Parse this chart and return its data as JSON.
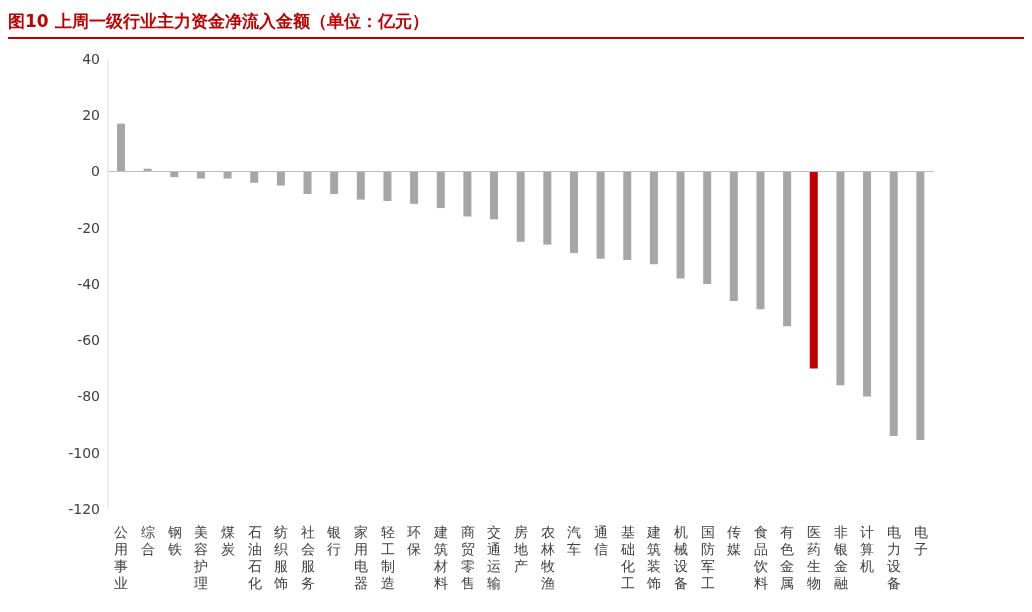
{
  "chart_data": {
    "type": "bar",
    "title": "图10  上周一级行业主力资金净流入金额（单位：亿元）",
    "categories": [
      "公用事业",
      "综合",
      "钢铁",
      "美容护理",
      "煤炭",
      "石油石化",
      "纺织服饰",
      "社会服务",
      "银行",
      "家用电器",
      "轻工制造",
      "环保",
      "建筑材料",
      "商贸零售",
      "交通运输",
      "房地产",
      "农林牧渔",
      "汽车",
      "通信",
      "基础化工",
      "建筑装饰",
      "机械设备",
      "国防军工",
      "传媒",
      "食品饮料",
      "有色金属",
      "医药生物",
      "非银金融",
      "计算机",
      "电力设备",
      "电子"
    ],
    "values": [
      17,
      1,
      -2,
      -2.5,
      -2.5,
      -4,
      -5,
      -8,
      -8,
      -10,
      -10.5,
      -11.5,
      -13,
      -16,
      -17,
      -25,
      -26,
      -29,
      -31,
      -31.5,
      -33,
      -38,
      -40,
      -46,
      -49,
      -55,
      -70,
      -76,
      -80,
      -94,
      -95.5
    ],
    "colors": [
      "#a6a6a6",
      "#a6a6a6",
      "#a6a6a6",
      "#a6a6a6",
      "#a6a6a6",
      "#a6a6a6",
      "#a6a6a6",
      "#a6a6a6",
      "#a6a6a6",
      "#a6a6a6",
      "#a6a6a6",
      "#a6a6a6",
      "#a6a6a6",
      "#a6a6a6",
      "#a6a6a6",
      "#a6a6a6",
      "#a6a6a6",
      "#a6a6a6",
      "#a6a6a6",
      "#a6a6a6",
      "#a6a6a6",
      "#a6a6a6",
      "#a6a6a6",
      "#a6a6a6",
      "#a6a6a6",
      "#a6a6a6",
      "#c00000",
      "#a6a6a6",
      "#a6a6a6",
      "#a6a6a6",
      "#a6a6a6"
    ],
    "ylim": [
      -120,
      40
    ],
    "yticks": [
      -120,
      -100,
      -80,
      -60,
      -40,
      -20,
      0,
      20,
      40
    ]
  }
}
